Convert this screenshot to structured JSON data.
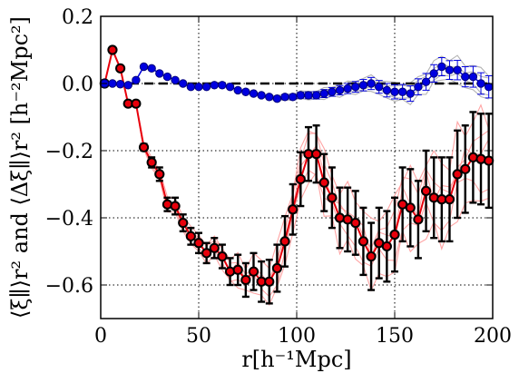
{
  "chart_data": {
    "type": "scatter",
    "xlabel": "r[h⁻¹Mpc]",
    "ylabel": "⟨ξ∥⟩r² and ⟨Δξ∥⟩r² [h⁻²Mpc²]",
    "xlim": [
      0,
      200
    ],
    "ylim": [
      -0.7,
      0.2
    ],
    "x_ticks": [
      0,
      50,
      100,
      150,
      200
    ],
    "x_tick_labels": [
      "0",
      "50",
      "100",
      "150",
      "200"
    ],
    "y_ticks": [
      0.2,
      0.0,
      -0.2,
      -0.4,
      -0.6
    ],
    "y_tick_labels": [
      "0.2",
      "0.0",
      "−0.2",
      "−0.4",
      "−0.6"
    ],
    "grid": true,
    "reference_line": {
      "y": 0,
      "style": "dashed",
      "color": "#000000"
    },
    "colors": {
      "red_series": "#e8000b",
      "blue_series": "#0000e0",
      "red_band": "#ff9999",
      "blue_band": "#aaaaaa"
    },
    "series": [
      {
        "marker_color": "#e8000b",
        "x": [
          2,
          6,
          10,
          14,
          18,
          22,
          26,
          30,
          34,
          38,
          42,
          46,
          50,
          54,
          58,
          62,
          66,
          70,
          74,
          78,
          82,
          86,
          90,
          94,
          98,
          102,
          106,
          110,
          114,
          118,
          122,
          126,
          130,
          134,
          138,
          142,
          146,
          150,
          154,
          158,
          162,
          166,
          170,
          174,
          178,
          182,
          186,
          190,
          194,
          198
        ],
        "y": [
          0.0,
          0.1,
          0.045,
          -0.06,
          -0.06,
          -0.19,
          -0.235,
          -0.27,
          -0.36,
          -0.365,
          -0.415,
          -0.455,
          -0.475,
          -0.505,
          -0.49,
          -0.515,
          -0.56,
          -0.555,
          -0.585,
          -0.56,
          -0.59,
          -0.59,
          -0.55,
          -0.47,
          -0.375,
          -0.285,
          -0.21,
          -0.21,
          -0.295,
          -0.34,
          -0.4,
          -0.405,
          -0.415,
          -0.47,
          -0.515,
          -0.475,
          -0.485,
          -0.45,
          -0.36,
          -0.37,
          -0.405,
          -0.32,
          -0.34,
          -0.345,
          -0.345,
          -0.27,
          -0.255,
          -0.22,
          -0.225,
          -0.23
        ],
        "yerr": [
          0.0,
          0.0,
          0.0,
          0.0,
          0.0,
          0.01,
          0.015,
          0.02,
          0.02,
          0.025,
          0.025,
          0.025,
          0.03,
          0.03,
          0.03,
          0.035,
          0.04,
          0.045,
          0.05,
          0.055,
          0.06,
          0.065,
          0.07,
          0.075,
          0.075,
          0.08,
          0.08,
          0.085,
          0.085,
          0.09,
          0.09,
          0.095,
          0.095,
          0.1,
          0.1,
          0.105,
          0.105,
          0.11,
          0.11,
          0.115,
          0.115,
          0.12,
          0.12,
          0.125,
          0.125,
          0.13,
          0.13,
          0.135,
          0.135,
          0.14
        ]
      },
      {
        "marker_color": "#0000e0",
        "x": [
          2,
          6,
          10,
          14,
          18,
          22,
          26,
          30,
          34,
          38,
          42,
          46,
          50,
          54,
          58,
          62,
          66,
          70,
          74,
          78,
          82,
          86,
          90,
          94,
          98,
          102,
          106,
          110,
          114,
          118,
          122,
          126,
          130,
          134,
          138,
          142,
          146,
          150,
          154,
          158,
          162,
          166,
          170,
          174,
          178,
          182,
          186,
          190,
          194,
          198
        ],
        "y": [
          0.0,
          0.0,
          -0.002,
          -0.005,
          0.01,
          0.05,
          0.045,
          0.03,
          0.02,
          0.01,
          0.0,
          -0.01,
          -0.01,
          -0.01,
          -0.005,
          -0.005,
          -0.01,
          -0.02,
          -0.025,
          -0.03,
          -0.035,
          -0.04,
          -0.045,
          -0.04,
          -0.04,
          -0.035,
          -0.035,
          -0.035,
          -0.03,
          -0.025,
          -0.02,
          -0.015,
          -0.01,
          -0.005,
          0.0,
          -0.01,
          -0.02,
          -0.025,
          -0.025,
          -0.03,
          -0.01,
          0.005,
          0.03,
          0.05,
          0.04,
          0.04,
          0.02,
          0.02,
          0.0,
          -0.01
        ],
        "yerr": [
          0.0,
          0.0,
          0.0,
          0.0,
          0.0,
          0.0,
          0.0,
          0.0,
          0.0,
          0.0,
          0.0,
          0.0,
          0.0,
          0.0,
          0.0,
          0.0,
          0.0,
          0.0,
          0.0,
          0.0,
          0.0,
          0.005,
          0.006,
          0.007,
          0.008,
          0.009,
          0.01,
          0.011,
          0.012,
          0.013,
          0.014,
          0.015,
          0.016,
          0.017,
          0.018,
          0.019,
          0.02,
          0.021,
          0.022,
          0.023,
          0.024,
          0.025,
          0.026,
          0.027,
          0.028,
          0.029,
          0.03,
          0.031,
          0.032,
          0.033
        ]
      }
    ]
  }
}
